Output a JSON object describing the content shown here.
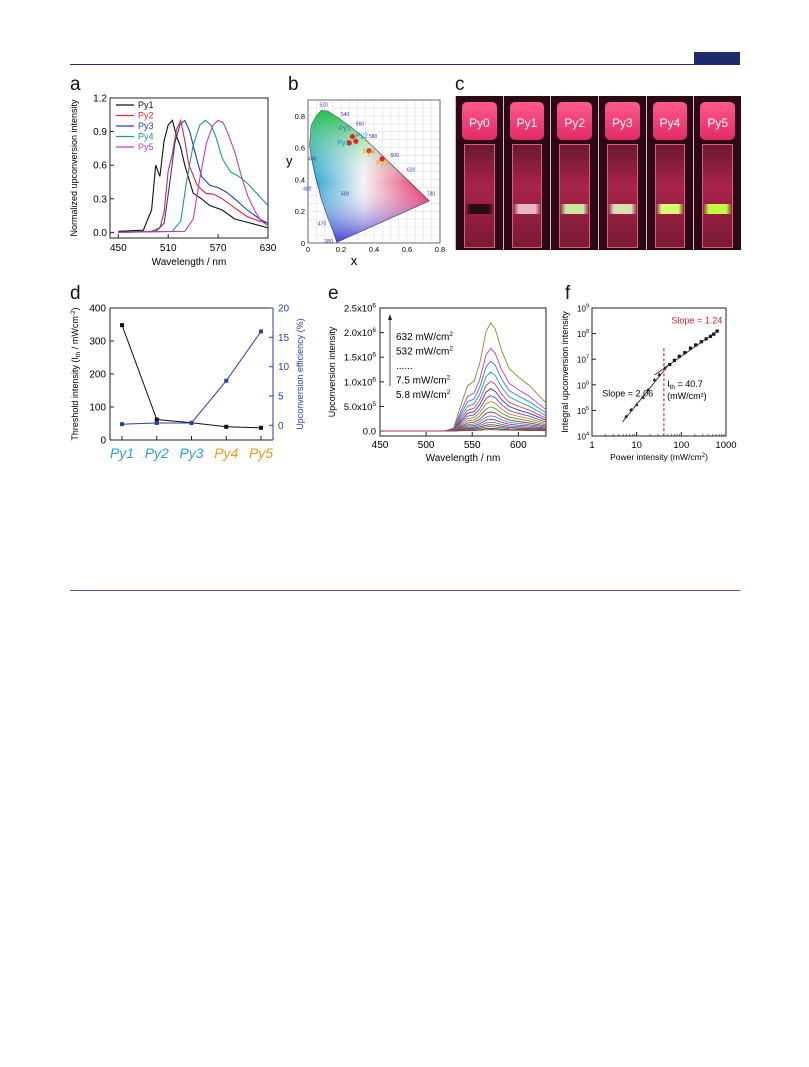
{
  "panels": {
    "a": {
      "letter": "a",
      "chart_data": {
        "type": "line",
        "xlabel": "Wavelength / nm",
        "ylabel": "Normalized upconversion intensity",
        "xlim": [
          440,
          630
        ],
        "ylim": [
          -0.05,
          1.2
        ],
        "xticks": [
          "450",
          "510",
          "570",
          "630"
        ],
        "yticks": [
          "0.0",
          "0.3",
          "0.6",
          "0.9",
          "1.2"
        ],
        "legend_position": "top-left",
        "series": [
          {
            "name": "Py1",
            "color": "#111111",
            "x": [
              450,
              480,
              490,
              495,
              500,
              505,
              510,
              515,
              520,
              525,
              530,
              540,
              550,
              560,
              575,
              590,
              610,
              630
            ],
            "y": [
              0.01,
              0.02,
              0.2,
              0.6,
              0.5,
              0.82,
              0.96,
              1.0,
              0.86,
              0.76,
              0.6,
              0.35,
              0.3,
              0.24,
              0.2,
              0.12,
              0.08,
              0.04
            ]
          },
          {
            "name": "Py2",
            "color": "#e0243c",
            "x": [
              450,
              490,
              500,
              505,
              510,
              515,
              520,
              525,
              530,
              535,
              545,
              555,
              565,
              575,
              590,
              605,
              620,
              630
            ],
            "y": [
              0.0,
              0.01,
              0.04,
              0.18,
              0.55,
              0.7,
              0.92,
              1.0,
              0.82,
              0.6,
              0.42,
              0.35,
              0.34,
              0.3,
              0.22,
              0.14,
              0.1,
              0.08
            ]
          },
          {
            "name": "Py3",
            "color": "#2b3ea6",
            "x": [
              450,
              495,
              505,
              512,
              518,
              524,
              530,
              536,
              542,
              550,
              560,
              570,
              580,
              590,
              605,
              620,
              630
            ],
            "y": [
              0.0,
              0.01,
              0.08,
              0.45,
              0.8,
              0.96,
              1.0,
              0.9,
              0.72,
              0.5,
              0.42,
              0.4,
              0.36,
              0.3,
              0.2,
              0.12,
              0.08
            ]
          },
          {
            "name": "Py4",
            "color": "#1a9a8c",
            "x": [
              450,
              515,
              525,
              532,
              540,
              548,
              555,
              562,
              568,
              575,
              585,
              595,
              605,
              615,
              625,
              630
            ],
            "y": [
              0.0,
              0.01,
              0.1,
              0.45,
              0.78,
              0.96,
              1.0,
              0.95,
              0.84,
              0.66,
              0.54,
              0.5,
              0.44,
              0.36,
              0.28,
              0.24
            ]
          },
          {
            "name": "Py5",
            "color": "#c43cb8",
            "x": [
              450,
              530,
              540,
              548,
              556,
              564,
              570,
              576,
              582,
              590,
              598,
              606,
              615,
              622,
              630
            ],
            "y": [
              0.0,
              0.01,
              0.12,
              0.48,
              0.8,
              0.96,
              1.0,
              0.98,
              0.88,
              0.72,
              0.5,
              0.32,
              0.18,
              0.1,
              0.06
            ]
          }
        ]
      }
    },
    "b": {
      "letter": "b",
      "chart_data": {
        "type": "scatter",
        "xlabel": "x",
        "ylabel": "y",
        "xlim": [
          0,
          0.8
        ],
        "ylim": [
          0,
          0.9
        ],
        "xticks": [
          "0",
          "0.2",
          "0.4",
          "0.6",
          "0.8"
        ],
        "yticks": [
          "0",
          "0.2",
          "0.4",
          "0.6",
          "0.8"
        ],
        "wavelength_labels": [
          "520",
          "540",
          "560",
          "580",
          "600",
          "620",
          "780",
          "500",
          "490",
          "480",
          "470",
          "380"
        ],
        "points": [
          {
            "name": "Py1",
            "x": 0.25,
            "y": 0.63,
            "color": "#e82020",
            "label_color": "#2a7fd0"
          },
          {
            "name": "Py2",
            "x": 0.29,
            "y": 0.64,
            "color": "#e82020",
            "label_color": "#2a7fd0"
          },
          {
            "name": "Py3",
            "x": 0.27,
            "y": 0.67,
            "color": "#e82020",
            "label_color": "#2a7fd0"
          },
          {
            "name": "Py4",
            "x": 0.37,
            "y": 0.58,
            "color": "#e82020",
            "label_color": "#e0a020"
          },
          {
            "name": "Py5",
            "x": 0.45,
            "y": 0.53,
            "color": "#e82020",
            "label_color": "#e0a020"
          }
        ]
      }
    },
    "c": {
      "letter": "c",
      "vials": [
        {
          "label": "Py0",
          "band": "#2a0a14"
        },
        {
          "label": "Py1",
          "band": "#e8b8c0"
        },
        {
          "label": "Py2",
          "band": "#c8e8a0"
        },
        {
          "label": "Py3",
          "band": "#d8e0b0"
        },
        {
          "label": "Py4",
          "band": "#d8ff70"
        },
        {
          "label": "Py5",
          "band": "#c0ff40"
        }
      ]
    },
    "d": {
      "letter": "d",
      "chart_data": {
        "type": "line",
        "categories": [
          "Py1",
          "Py2",
          "Py3",
          "Py4",
          "Py5"
        ],
        "category_colors": [
          "#2aa0d8",
          "#2aa0d8",
          "#2aa0d8",
          "#e89a20",
          "#e89a20"
        ],
        "ylabel": "Threshold intensity (I",
        "ylabel_sub": "th",
        "ylabel_tail": " / mWcm",
        "ylabel_sup": "-2",
        "ylabel_close": ")",
        "y2label": "Upconversion  efficiency (%)",
        "ylim": [
          0,
          400
        ],
        "y2lim": [
          -2.5,
          20
        ],
        "yticks": [
          "0",
          "100",
          "200",
          "300",
          "400"
        ],
        "y2ticks": [
          "0",
          "5",
          "10",
          "15",
          "20"
        ],
        "series": [
          {
            "name": "Threshold intensity",
            "axis": "left",
            "color": "#111111",
            "values": [
              348,
              62,
              52,
              40,
              37
            ]
          },
          {
            "name": "Upconversion efficiency",
            "axis": "right",
            "color": "#2b3ea6",
            "values": [
              0.2,
              0.4,
              0.4,
              7.6,
              16.0
            ]
          }
        ]
      }
    },
    "e": {
      "letter": "e",
      "chart_data": {
        "type": "line",
        "xlabel": "Wavelength / nm",
        "ylabel": "Upconversion intensity",
        "xlim": [
          450,
          630
        ],
        "ylim": [
          -100000,
          2500000
        ],
        "xticks": [
          "450",
          "500",
          "550",
          "600"
        ],
        "yticks": [
          {
            "base": "0.0",
            "exp": ""
          },
          {
            "base": "5.0x10",
            "exp": "5"
          },
          {
            "base": "1.0x10",
            "exp": "6"
          },
          {
            "base": "1.5x10",
            "exp": "6"
          },
          {
            "base": "2.0x10",
            "exp": "6"
          },
          {
            "base": "2.5x10",
            "exp": "6"
          }
        ],
        "legend_lines": [
          {
            "value": "632 mW/cm",
            "sup": "2"
          },
          {
            "value": "532 mW/cm",
            "sup": "2"
          },
          {
            "value": "......",
            "sup": ""
          },
          {
            "value": "7.5 mW/cm",
            "sup": "2"
          },
          {
            "value": "5.8 mW/cm",
            "sup": "2"
          }
        ],
        "spectrum_shape": {
          "x": [
            450,
            520,
            530,
            538,
            545,
            552,
            558,
            565,
            570,
            575,
            582,
            590,
            600,
            612,
            622,
            630
          ],
          "y": [
            0,
            0,
            0.03,
            0.25,
            0.42,
            0.46,
            0.62,
            0.92,
            1.0,
            0.94,
            0.74,
            0.58,
            0.5,
            0.42,
            0.33,
            0.26
          ]
        },
        "series_peaks": [
          2200000,
          1680000,
          1420000,
          1200000,
          1010000,
          860000,
          720000,
          600000,
          490000,
          390000,
          310000,
          240000,
          180000,
          130000,
          90000,
          55000,
          30000
        ],
        "series_colors": [
          "#8a8a2a",
          "#c040c0",
          "#3a7ad8",
          "#20a0a0",
          "#e04060",
          "#3040b0",
          "#8040c0",
          "#d08030",
          "#40a040",
          "#c03030",
          "#2a9ad0",
          "#a03090",
          "#707070",
          "#3050a0",
          "#a06020",
          "#208070",
          "#b03050"
        ]
      }
    },
    "f": {
      "letter": "f",
      "chart_data": {
        "type": "scatter",
        "xlabel": "Power intensity (mW/cm",
        "xlabel_sup": "2",
        "xlabel_close": ")",
        "ylabel": "Integral upconversion intensity",
        "xscale": "log",
        "yscale": "log",
        "xlim": [
          1,
          1000
        ],
        "ylim": [
          10000,
          1000000000
        ],
        "xticks": [
          "1",
          "10",
          "100",
          "1000"
        ],
        "yticks": [
          {
            "base": "10",
            "exp": "4"
          },
          {
            "base": "10",
            "exp": "5"
          },
          {
            "base": "10",
            "exp": "6"
          },
          {
            "base": "10",
            "exp": "7"
          },
          {
            "base": "10",
            "exp": "8"
          },
          {
            "base": "10",
            "exp": "9"
          }
        ],
        "points_x": [
          5.8,
          7.5,
          10,
          14,
          18,
          25,
          32,
          42,
          55,
          70,
          90,
          120,
          160,
          210,
          280,
          360,
          450,
          532,
          632
        ],
        "points_y": [
          60000,
          110000,
          170000,
          330000,
          650000,
          1600000,
          2600000,
          4500000,
          6200000,
          9000000,
          13000000,
          18000000,
          27000000,
          36000000,
          48000000,
          62000000,
          78000000,
          95000000,
          125000000
        ],
        "fit_low": {
          "x": [
            4.8,
            55
          ],
          "y": [
            35000,
            6800000
          ],
          "label": "Slope = 2.06"
        },
        "fit_high": {
          "x": [
            25,
            700
          ],
          "y": [
            2400000,
            140000000
          ],
          "label": "Slope = 1.24",
          "label_color": "#e02020"
        },
        "threshold": {
          "x": 40.7,
          "label": "I",
          "label_sub": "th",
          "label_tail": " = 40.7",
          "unit": "(mW/cm²)"
        }
      }
    }
  }
}
